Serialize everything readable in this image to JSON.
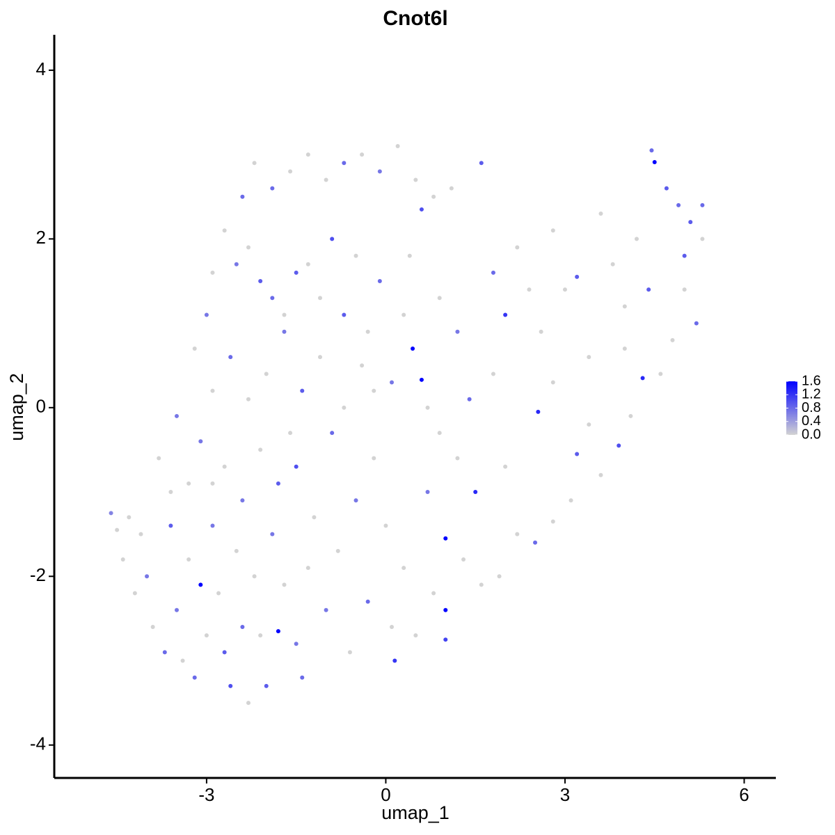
{
  "chart_data": {
    "type": "scatter",
    "title": "Cnot6l",
    "x_label": "umap_1",
    "y_label": "umap_2",
    "xlim": [
      -5.55,
      6.53
    ],
    "ylim": [
      -4.39,
      4.42
    ],
    "xticks": [
      -3,
      0,
      3,
      6
    ],
    "yticks": [
      -4,
      -2,
      0,
      2,
      4
    ],
    "grid": false,
    "legend": "right",
    "low_color": "#d3d3d3",
    "high_color": "#0000ff",
    "clim": [
      0,
      1.6
    ],
    "cticks": [
      {
        "value": 0,
        "label": "0.0"
      },
      0.4,
      0.8,
      1.2,
      1.6
    ],
    "x": [
      -4.6,
      -4.5,
      -4.4,
      -4.2,
      -4.0,
      -3.9,
      -3.7,
      -3.6,
      -3.5,
      -3.4,
      -3.3,
      -3.2,
      -3.1,
      -3.0,
      -2.9,
      -2.8,
      -2.7,
      -2.6,
      -2.5,
      -2.4,
      -2.3,
      -2.2,
      -2.1,
      -2.0,
      -1.9,
      -1.8,
      -1.7,
      -1.5,
      -1.4,
      -1.3,
      -4.1,
      -3.8,
      -3.5,
      -3.3,
      -3.1,
      -2.9,
      -2.7,
      -2.6,
      -2.4,
      -2.3,
      -2.1,
      -2.0,
      -1.8,
      -1.7,
      -1.5,
      -1.4,
      -1.2,
      -1.1,
      -0.9,
      -0.8,
      -0.7,
      -0.5,
      -0.4,
      -0.3,
      -0.2,
      0.0,
      0.1,
      0.15,
      0.3,
      0.45,
      0.6,
      0.5,
      0.7,
      0.8,
      1.0,
      1.0,
      1.0,
      1.2,
      1.3,
      1.5,
      1.6,
      1.4,
      1.2,
      0.9,
      0.7,
      0.3,
      0.1,
      -0.1,
      -0.3,
      -0.5,
      -0.7,
      -0.9,
      -1.1,
      -1.3,
      -1.5,
      -1.7,
      -1.9,
      -2.1,
      -2.3,
      -2.5,
      -2.7,
      -2.9,
      -3.0,
      -3.2,
      -2.4,
      -2.2,
      -1.9,
      -1.6,
      -1.3,
      -1.0,
      -0.7,
      -0.4,
      -0.1,
      0.2,
      0.5,
      0.8,
      1.1,
      0.6,
      1.6,
      0.4,
      1.8,
      2.0,
      2.2,
      2.4,
      2.6,
      2.8,
      3.0,
      3.2,
      3.4,
      3.6,
      3.8,
      4.0,
      4.2,
      4.4,
      4.5,
      4.45,
      4.7,
      4.9,
      5.1,
      5.3,
      5.0,
      5.2,
      4.8,
      4.6,
      4.3,
      4.1,
      3.9,
      3.6,
      3.4,
      3.1,
      2.8,
      2.55,
      2.5,
      2.2,
      2.0,
      1.8,
      3.2,
      4.0,
      5.0,
      5.3,
      2.8,
      1.9,
      -0.6,
      -1.0,
      -3.6,
      -4.3,
      -2.9,
      -0.2,
      0.9,
      -1.6
    ],
    "y": [
      -1.25,
      -1.45,
      -1.8,
      -2.2,
      -2.0,
      -2.6,
      -2.9,
      -1.4,
      -2.4,
      -3.0,
      -1.8,
      -3.2,
      -2.1,
      -2.7,
      -1.4,
      -2.2,
      -2.9,
      -3.3,
      -1.7,
      -2.6,
      -3.5,
      -2.0,
      -2.7,
      -3.3,
      -1.5,
      -2.65,
      -2.1,
      -2.8,
      -3.2,
      -1.9,
      -1.5,
      -0.6,
      -0.1,
      -0.9,
      -0.4,
      0.2,
      -0.7,
      0.6,
      -1.1,
      0.1,
      -0.5,
      0.4,
      -0.9,
      0.9,
      -0.7,
      0.2,
      -1.3,
      0.6,
      -0.3,
      -1.7,
      0.0,
      -1.1,
      0.5,
      -2.3,
      -0.6,
      -1.4,
      -2.6,
      -3.0,
      -1.9,
      0.7,
      0.33,
      -2.7,
      -1.0,
      -2.2,
      -1.55,
      -2.4,
      -2.75,
      -0.6,
      -1.8,
      -1.0,
      -2.1,
      0.1,
      0.9,
      1.3,
      0.0,
      1.1,
      0.3,
      1.5,
      0.9,
      1.8,
      1.1,
      2.0,
      1.3,
      1.7,
      1.6,
      1.1,
      1.3,
      1.5,
      1.9,
      1.7,
      2.1,
      1.6,
      1.1,
      0.7,
      2.5,
      2.9,
      2.6,
      2.8,
      3.0,
      2.7,
      2.9,
      3.0,
      2.8,
      3.1,
      2.7,
      2.5,
      2.6,
      2.35,
      2.9,
      1.8,
      1.6,
      1.1,
      1.9,
      1.4,
      0.9,
      2.1,
      1.4,
      1.55,
      0.6,
      2.3,
      1.7,
      1.2,
      2.0,
      1.4,
      2.91,
      3.05,
      2.6,
      2.4,
      2.2,
      2.4,
      1.8,
      1.0,
      0.8,
      0.4,
      0.35,
      -0.1,
      -0.45,
      -0.8,
      -0.2,
      -1.1,
      -1.35,
      -0.05,
      -1.6,
      -1.5,
      -0.7,
      0.4,
      -0.55,
      0.7,
      1.4,
      2.0,
      0.3,
      -2.0,
      -2.9,
      -2.4,
      -1.0,
      -1.3,
      -0.9,
      0.2,
      -0.3,
      -0.3
    ],
    "values": [
      0.6,
      0,
      0,
      0,
      0.7,
      0,
      0.8,
      0.9,
      0.7,
      0,
      0,
      0.8,
      1.6,
      0,
      0.7,
      0,
      0.9,
      1.0,
      0,
      0.8,
      0,
      0,
      0,
      0.9,
      0.7,
      1.6,
      0,
      0.7,
      0.8,
      0,
      0,
      0,
      0.7,
      0,
      0.7,
      0,
      0,
      0.8,
      0.7,
      0,
      0,
      0,
      0.9,
      0.7,
      1.0,
      0.9,
      0,
      0,
      0.8,
      0,
      0,
      0.7,
      0,
      0.8,
      0,
      0,
      0,
      1.2,
      0,
      1.6,
      1.6,
      0,
      0.7,
      0,
      1.6,
      1.6,
      1.1,
      0,
      0,
      1.3,
      0,
      0.8,
      0.7,
      0,
      0,
      0,
      0.7,
      0.8,
      0,
      0,
      0.9,
      1.0,
      0,
      0,
      0.9,
      0,
      0.8,
      0.9,
      0,
      0.7,
      0,
      0,
      0.7,
      0,
      0.8,
      0,
      0.8,
      0,
      0,
      0,
      0.8,
      0,
      0.7,
      0,
      0,
      0,
      0,
      1.0,
      0.9,
      0,
      0.8,
      1.2,
      0,
      0,
      0,
      0,
      0,
      0.9,
      0,
      0,
      0,
      0,
      0,
      0.9,
      1.6,
      0.8,
      0.9,
      0.8,
      0.9,
      0.8,
      0.9,
      0.8,
      0,
      0,
      1.3,
      0,
      1.0,
      0,
      0,
      0,
      0,
      1.3,
      0.8,
      0,
      0,
      0,
      0.9,
      0,
      0,
      0,
      0,
      0,
      0,
      0.7,
      0,
      0,
      0,
      0,
      0,
      0
    ]
  }
}
